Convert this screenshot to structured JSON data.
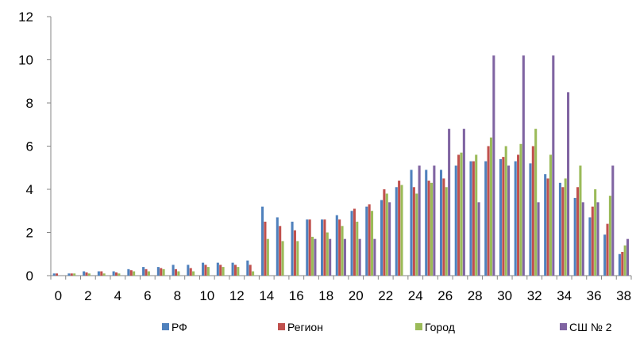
{
  "chart_data": {
    "type": "bar",
    "categories": [
      0,
      1,
      2,
      3,
      4,
      5,
      6,
      7,
      8,
      9,
      10,
      11,
      12,
      13,
      14,
      15,
      16,
      17,
      18,
      19,
      20,
      21,
      22,
      23,
      24,
      25,
      26,
      27,
      28,
      29,
      30,
      31,
      32,
      33,
      34,
      35,
      36,
      37,
      38
    ],
    "x_tick_labels": [
      "0",
      "2",
      "4",
      "6",
      "8",
      "10",
      "12",
      "14",
      "16",
      "18",
      "20",
      "22",
      "24",
      "26",
      "28",
      "30",
      "32",
      "34",
      "36",
      "38"
    ],
    "ylim": [
      0,
      12
    ],
    "y_ticks": [
      0,
      2,
      4,
      6,
      8,
      10,
      12
    ],
    "grid": false,
    "legend_position": "bottom",
    "series": [
      {
        "name": "РФ",
        "color": "#4F81BD",
        "values": [
          0.1,
          0.1,
          0.2,
          0.2,
          0.2,
          0.3,
          0.4,
          0.4,
          0.5,
          0.5,
          0.6,
          0.6,
          0.6,
          0.7,
          3.2,
          2.7,
          2.5,
          2.6,
          2.6,
          2.8,
          3.0,
          3.2,
          3.5,
          4.1,
          4.9,
          4.9,
          4.9,
          5.1,
          5.3,
          5.3,
          5.4,
          5.3,
          5.2,
          4.7,
          4.3,
          3.6,
          2.7,
          1.9,
          1.0
        ]
      },
      {
        "name": "Регион",
        "color": "#C0504D",
        "values": [
          0.1,
          0.1,
          0.15,
          0.2,
          0.15,
          0.25,
          0.3,
          0.35,
          0.3,
          0.35,
          0.5,
          0.5,
          0.5,
          0.5,
          2.5,
          2.3,
          2.1,
          2.6,
          2.6,
          2.6,
          3.1,
          3.3,
          4.0,
          4.4,
          4.1,
          4.4,
          4.5,
          5.6,
          5.3,
          6.0,
          5.5,
          5.6,
          6.0,
          4.5,
          4.1,
          4.1,
          3.2,
          2.4,
          1.1
        ]
      },
      {
        "name": "Город",
        "color": "#9BBB59",
        "values": [
          0,
          0.1,
          0.1,
          0.1,
          0.1,
          0.2,
          0.2,
          0.3,
          0.2,
          0.2,
          0.4,
          0.4,
          0.4,
          0.2,
          1.7,
          1.6,
          1.6,
          1.8,
          2.0,
          2.3,
          2.5,
          3.0,
          3.8,
          4.2,
          3.8,
          4.3,
          4.1,
          5.7,
          5.6,
          6.4,
          6.0,
          6.1,
          6.8,
          5.6,
          4.5,
          5.1,
          4.0,
          3.7,
          1.4
        ]
      },
      {
        "name": "СШ № 2",
        "color": "#8064A2",
        "values": [
          0,
          0,
          0,
          0,
          0,
          0,
          0,
          0,
          0,
          0,
          0,
          0,
          0,
          0,
          0,
          0,
          0,
          1.7,
          1.7,
          1.7,
          1.7,
          1.7,
          3.4,
          0,
          5.1,
          5.1,
          6.8,
          6.8,
          3.4,
          10.2,
          5.1,
          10.2,
          3.4,
          10.2,
          8.5,
          3.4,
          3.4,
          5.1,
          1.7
        ]
      }
    ]
  }
}
